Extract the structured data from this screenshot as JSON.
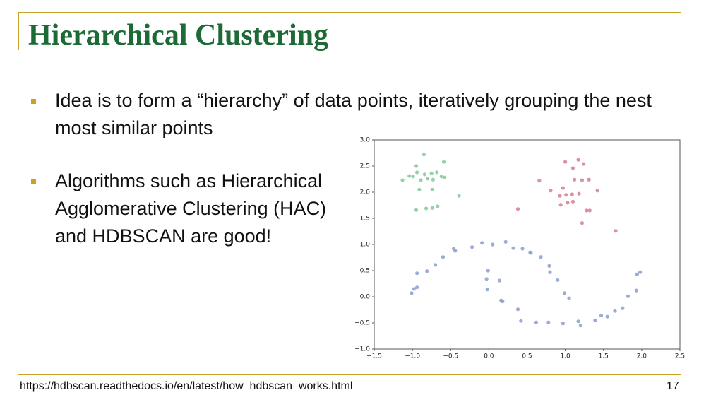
{
  "header": {
    "title": "Hierarchical Clustering"
  },
  "bullets": [
    "Idea is to form a “hierarchy” of data points, iteratively grouping the nest most similar points",
    "Algorithms such as Hierarchical Agglomerative Clustering (HAC) and HDBSCAN are good!"
  ],
  "chart_data": {
    "type": "scatter",
    "xlim": [
      -1.5,
      2.5
    ],
    "ylim": [
      -1.0,
      3.0
    ],
    "xticks": [
      {
        "value": -1.5,
        "label": "−1.5"
      },
      {
        "value": -1.0,
        "label": "−1.0"
      },
      {
        "value": -0.5,
        "label": "−0.5"
      },
      {
        "value": 0,
        "label": "0.0"
      },
      0.5,
      {
        "value": 1,
        "label": "1.0"
      },
      1.5,
      {
        "value": 2,
        "label": "2.0"
      },
      2.5
    ],
    "yticks": [
      {
        "value": -1.0,
        "label": "−1.0"
      },
      {
        "value": -0.5,
        "label": "−0.5"
      },
      {
        "value": 0,
        "label": "0.0"
      },
      0.5,
      {
        "value": 1,
        "label": "1.0"
      },
      1.5,
      {
        "value": 2,
        "label": "2.0"
      },
      2.5,
      {
        "value": 3,
        "label": "3.0"
      }
    ],
    "series": [
      {
        "color": "#86c99a",
        "x": [
          -0.85,
          -0.95,
          -0.59,
          -1.04,
          -1.13,
          -0.94,
          -0.84,
          -0.75,
          -0.68,
          -0.62,
          -0.73,
          -0.8,
          -0.89,
          -0.99,
          -0.58,
          -0.91,
          -0.74,
          -0.39,
          -0.82,
          -0.74,
          -0.67,
          -0.95
        ],
        "values": [
          2.72,
          2.5,
          2.58,
          2.31,
          2.23,
          2.38,
          2.34,
          2.36,
          2.38,
          2.3,
          2.24,
          2.26,
          2.23,
          2.3,
          2.28,
          2.05,
          2.05,
          1.93,
          1.69,
          1.7,
          1.73,
          1.66
        ]
      },
      {
        "color": "#d37f8f",
        "x": [
          1.17,
          1.0,
          0.66,
          1.24,
          1.1,
          1.12,
          1.22,
          1.31,
          0.97,
          1.09,
          1.01,
          0.93,
          0.81,
          1.18,
          1.42,
          1.1,
          0.94,
          1.03,
          1.28,
          1.32,
          1.22,
          0.38,
          1.66
        ],
        "values": [
          2.62,
          2.58,
          2.22,
          2.54,
          2.46,
          2.24,
          2.23,
          2.24,
          2.08,
          1.96,
          1.95,
          1.93,
          2.03,
          1.97,
          2.03,
          1.82,
          1.76,
          1.8,
          1.65,
          1.65,
          1.41,
          1.68,
          1.26
        ]
      },
      {
        "color": "#8b9ecf",
        "x": [
          -1.01,
          -0.98,
          -0.94,
          -0.94,
          -0.81,
          -0.7,
          -0.6,
          -0.46,
          -0.44,
          -0.22,
          -0.09,
          0.05,
          0.22,
          0.32,
          0.44,
          0.54,
          0.55,
          0.68,
          0.79,
          0.8,
          0.9,
          0.99,
          1.05,
          -0.01,
          -0.03,
          -0.02,
          0.14,
          0.16,
          0.18,
          0.38,
          0.42,
          0.62,
          0.78,
          0.97,
          1.17,
          1.2,
          1.39,
          1.47,
          1.55,
          1.65,
          1.75,
          1.82,
          1.93,
          1.94,
          1.98
        ],
        "values": [
          0.07,
          0.15,
          0.18,
          0.45,
          0.49,
          0.61,
          0.76,
          0.92,
          0.88,
          0.95,
          1.03,
          1.0,
          1.05,
          0.93,
          0.92,
          0.85,
          0.84,
          0.76,
          0.59,
          0.47,
          0.32,
          0.07,
          -0.03,
          0.5,
          0.34,
          0.14,
          0.31,
          -0.07,
          -0.09,
          -0.24,
          -0.46,
          -0.49,
          -0.49,
          -0.51,
          -0.47,
          -0.55,
          -0.45,
          -0.36,
          -0.38,
          -0.27,
          -0.22,
          0.01,
          0.12,
          0.43,
          0.47
        ]
      }
    ]
  },
  "footer": {
    "source": "https://hdbscan.readthedocs.io/en/latest/how_hdbscan_works.html",
    "page": "17"
  }
}
